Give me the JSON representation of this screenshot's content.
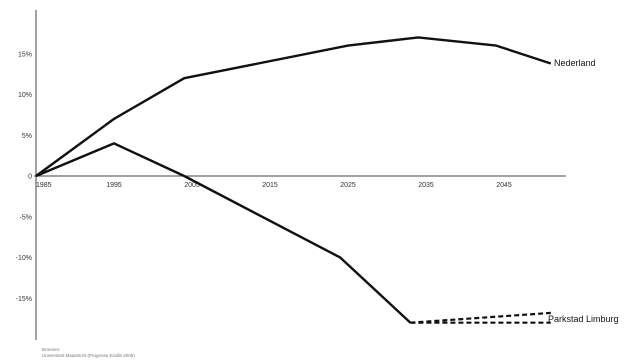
{
  "chart_data": {
    "type": "line",
    "title": "",
    "xlabel": "",
    "ylabel": "",
    "x_ticks": [
      "1985",
      "1995",
      "2005",
      "2015",
      "2025",
      "2035",
      "2045"
    ],
    "y_ticks": [
      "15%",
      "10%",
      "5%",
      "0",
      "-5%",
      "-10%",
      "-15%"
    ],
    "xlim": [
      1985,
      2053
    ],
    "ylim": [
      -19,
      20
    ],
    "grid": false,
    "series": [
      {
        "name": "Nederland",
        "x": [
          1985,
          1995,
          2004,
          2025,
          2034,
          2044,
          2051
        ],
        "y": [
          0,
          7,
          12,
          16,
          17,
          16,
          13.8
        ],
        "style": "solid"
      },
      {
        "name": "Parkstad Limburg",
        "x": [
          1985,
          1995,
          2004,
          2024,
          2033
        ],
        "y": [
          0,
          4,
          0,
          -10,
          -18
        ],
        "style": "solid"
      },
      {
        "name": "",
        "x": [
          2033,
          2051
        ],
        "y": [
          -18,
          -16.8
        ],
        "style": "dashed"
      },
      {
        "name": "",
        "x": [
          2033,
          2051
        ],
        "y": [
          -18,
          -18
        ],
        "style": "dashed"
      }
    ],
    "source_lines": [
      "Bronnen:",
      "Universiteit Maastricht (Prognose Eindle 2009)"
    ],
    "line_color": "#111111",
    "axis_color": "#444444"
  }
}
